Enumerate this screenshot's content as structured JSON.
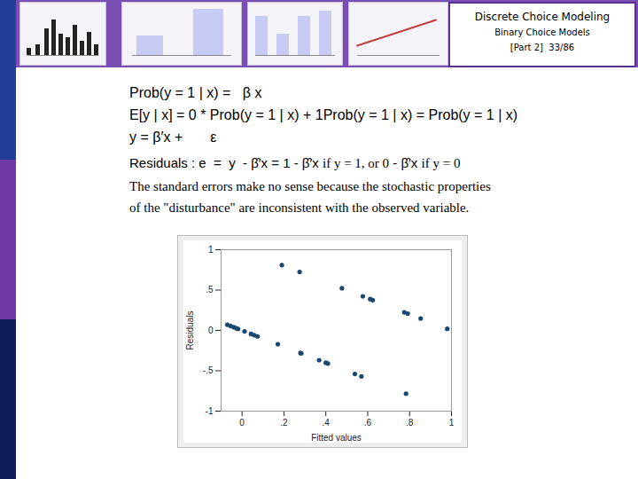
{
  "header": {
    "title": "Discrete Choice Modeling",
    "subtitle": "Binary Choice Models",
    "page": "[Part 2]  33/86"
  },
  "equations": [
    [
      {
        "text": "Prob(y = 1 | x) =   β x",
        "font": "sans"
      }
    ],
    [
      {
        "text": "E[y | x] = 0 * Prob(y = 1 | x) + 1Prob(y = 1 | x) = Prob(y = 1 | x)",
        "font": "sans"
      }
    ],
    [
      {
        "text": "y = β′x +       ε",
        "font": "sans"
      }
    ],
    [
      {
        "text": "Residuals : e  =  y  - β̂′x = 1 - β̂′x ",
        "font": "sans"
      },
      {
        "text": "if y = 1, or 0",
        "font": "serif"
      },
      {
        "text": " - β̂′x ",
        "font": "sans"
      },
      {
        "text": "if y = 0",
        "font": "serif"
      }
    ]
  ],
  "caption": [
    "The standard errors make no sense because the stochastic properties",
    "of the \"disturbance\" are inconsistent with the observed variable."
  ],
  "chart_data": {
    "type": "scatter",
    "x_label": "Fitted values",
    "y_label": "Residuals",
    "color": "#1a476f",
    "marker": "circle",
    "x": [
      -0.07,
      -0.054,
      -0.039,
      -0.027,
      -0.019,
      0.012,
      0.043,
      0.058,
      0.074,
      0.171,
      0.19,
      0.275,
      0.279,
      0.283,
      0.368,
      0.4,
      0.41,
      0.477,
      0.539,
      0.57,
      0.577,
      0.612,
      0.624,
      0.775,
      0.791,
      0.783,
      0.853,
      0.98
    ],
    "values": [
      0.07,
      0.054,
      0.039,
      0.027,
      0.019,
      -0.012,
      -0.043,
      -0.058,
      -0.074,
      -0.171,
      0.81,
      0.725,
      -0.279,
      -0.283,
      -0.368,
      -0.4,
      -0.41,
      0.523,
      -0.539,
      -0.57,
      0.423,
      0.388,
      0.376,
      0.225,
      0.209,
      -0.783,
      0.147,
      0.02
    ],
    "xlim": [
      -0.1,
      1
    ],
    "ylim": [
      -1,
      1
    ],
    "xticks": [
      0,
      {
        "value": 0.2,
        "label": ".2"
      },
      {
        "value": 0.4,
        "label": ".4"
      },
      {
        "value": 0.6,
        "label": ".6"
      },
      {
        "value": 0.8,
        "label": ".8"
      },
      1
    ],
    "yticks": [
      -1,
      {
        "value": -0.5,
        "label": "-.5"
      },
      0,
      {
        "value": 0.5,
        "label": ".5"
      },
      1
    ]
  }
}
